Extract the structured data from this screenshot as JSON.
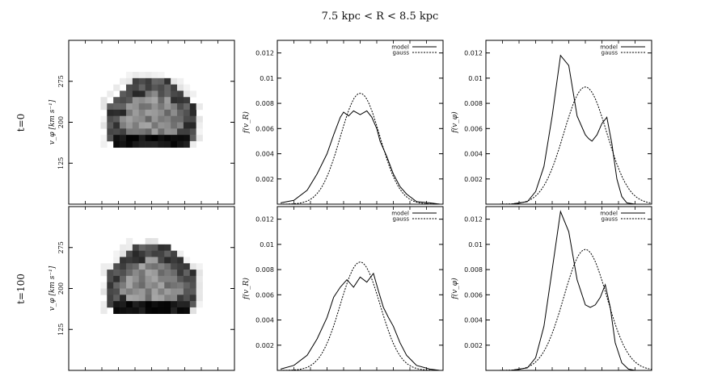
{
  "figure": {
    "title": "7.5 kpc < R < 8.5 kpc",
    "row_labels": [
      "t=0",
      "t=100"
    ]
  },
  "colors": {
    "model": "#000000",
    "gauss": "#000000",
    "frame": "#000000"
  },
  "chart_data": [
    {
      "type": "heatmap",
      "panel": "row1-col1",
      "ylabel": "v_φ [km s⁻¹]",
      "yticks": [
        "275",
        "200",
        "125"
      ],
      "ylim": [
        50,
        350
      ],
      "grid": false,
      "description_values": {
        "dense_band_vphi": 150,
        "ring_upper_vphi": 250
      }
    },
    {
      "type": "line",
      "panel": "row1-col2",
      "ylabel": "f(v_R)",
      "ylim": [
        0,
        0.013
      ],
      "yticks": [
        "0.002",
        "0.004",
        "0.006",
        "0.008",
        "0.01",
        "0.012"
      ],
      "xlim": [
        0,
        1
      ],
      "legend": "top-right",
      "series": [
        {
          "name": "model",
          "style": "solid",
          "x": [
            0.02,
            0.1,
            0.18,
            0.24,
            0.3,
            0.34,
            0.38,
            0.4,
            0.43,
            0.46,
            0.5,
            0.54,
            0.57,
            0.6,
            0.62,
            0.66,
            0.7,
            0.74,
            0.78,
            0.84,
            0.92,
            0.98
          ],
          "y": [
            0.0001,
            0.0003,
            0.0011,
            0.0024,
            0.004,
            0.0055,
            0.0069,
            0.0073,
            0.007,
            0.0074,
            0.0071,
            0.0074,
            0.0069,
            0.006,
            0.005,
            0.0038,
            0.0024,
            0.0014,
            0.0008,
            0.0002,
            0.0001,
            0.0
          ]
        },
        {
          "name": "gauss",
          "style": "dashed",
          "mean": 0.5,
          "sigma": 0.12,
          "peak": 0.0088
        }
      ]
    },
    {
      "type": "line",
      "panel": "row1-col3",
      "ylabel": "f(v_φ)",
      "ylim": [
        0,
        0.013
      ],
      "yticks": [
        "0.002",
        "0.004",
        "0.006",
        "0.008",
        "0.01",
        "0.012"
      ],
      "xlim": [
        0,
        1
      ],
      "legend": "top-right",
      "series": [
        {
          "name": "model",
          "style": "solid",
          "x": [
            0.02,
            0.15,
            0.25,
            0.3,
            0.35,
            0.4,
            0.45,
            0.5,
            0.55,
            0.6,
            0.62,
            0.64,
            0.67,
            0.7,
            0.73,
            0.76,
            0.79,
            0.82,
            0.85,
            0.9,
            0.98
          ],
          "y": [
            0.0,
            0.0,
            0.0002,
            0.001,
            0.003,
            0.007,
            0.0118,
            0.011,
            0.007,
            0.0055,
            0.0052,
            0.005,
            0.0055,
            0.0064,
            0.0069,
            0.0048,
            0.002,
            0.0006,
            0.0001,
            0.0,
            0.0
          ]
        },
        {
          "name": "gauss",
          "style": "dashed",
          "mean": 0.6,
          "sigma": 0.13,
          "peak": 0.0093
        }
      ]
    },
    {
      "type": "heatmap",
      "panel": "row2-col1",
      "ylabel": "v_φ [km s⁻¹]",
      "yticks": [
        "275",
        "200",
        "125"
      ],
      "ylim": [
        50,
        350
      ],
      "grid": false,
      "description_values": {
        "dense_band_vphi": 150,
        "ring_upper_vphi": 250
      }
    },
    {
      "type": "line",
      "panel": "row2-col2",
      "ylabel": "f(v_R)",
      "ylim": [
        0,
        0.013
      ],
      "yticks": [
        "0.002",
        "0.004",
        "0.006",
        "0.008",
        "0.01",
        "0.012"
      ],
      "xlim": [
        0,
        1
      ],
      "legend": "top-right",
      "series": [
        {
          "name": "model",
          "style": "solid",
          "x": [
            0.02,
            0.1,
            0.18,
            0.24,
            0.3,
            0.34,
            0.38,
            0.42,
            0.46,
            0.5,
            0.54,
            0.58,
            0.61,
            0.64,
            0.67,
            0.7,
            0.74,
            0.78,
            0.84,
            0.92,
            0.98
          ],
          "y": [
            0.0001,
            0.0004,
            0.0012,
            0.0025,
            0.0042,
            0.0058,
            0.0066,
            0.0072,
            0.0066,
            0.0074,
            0.007,
            0.0077,
            0.0063,
            0.005,
            0.0042,
            0.0035,
            0.0022,
            0.0012,
            0.0004,
            0.0001,
            0.0
          ]
        },
        {
          "name": "gauss",
          "style": "dashed",
          "mean": 0.5,
          "sigma": 0.12,
          "peak": 0.0086
        }
      ]
    },
    {
      "type": "line",
      "panel": "row2-col3",
      "ylabel": "f(v_φ)",
      "ylim": [
        0,
        0.013
      ],
      "yticks": [
        "0.002",
        "0.004",
        "0.006",
        "0.008",
        "0.01",
        "0.012"
      ],
      "xlim": [
        0,
        1
      ],
      "legend": "top-right",
      "series": [
        {
          "name": "model",
          "style": "solid",
          "x": [
            0.02,
            0.15,
            0.25,
            0.3,
            0.35,
            0.4,
            0.45,
            0.5,
            0.55,
            0.6,
            0.63,
            0.66,
            0.69,
            0.72,
            0.75,
            0.78,
            0.82,
            0.86,
            0.9,
            0.98
          ],
          "y": [
            0.0,
            0.0,
            0.0002,
            0.001,
            0.0035,
            0.008,
            0.0126,
            0.011,
            0.0072,
            0.0052,
            0.005,
            0.0052,
            0.0058,
            0.0068,
            0.005,
            0.0022,
            0.0006,
            0.0001,
            0.0,
            0.0
          ]
        },
        {
          "name": "gauss",
          "style": "dashed",
          "mean": 0.6,
          "sigma": 0.13,
          "peak": 0.0096
        }
      ]
    }
  ]
}
